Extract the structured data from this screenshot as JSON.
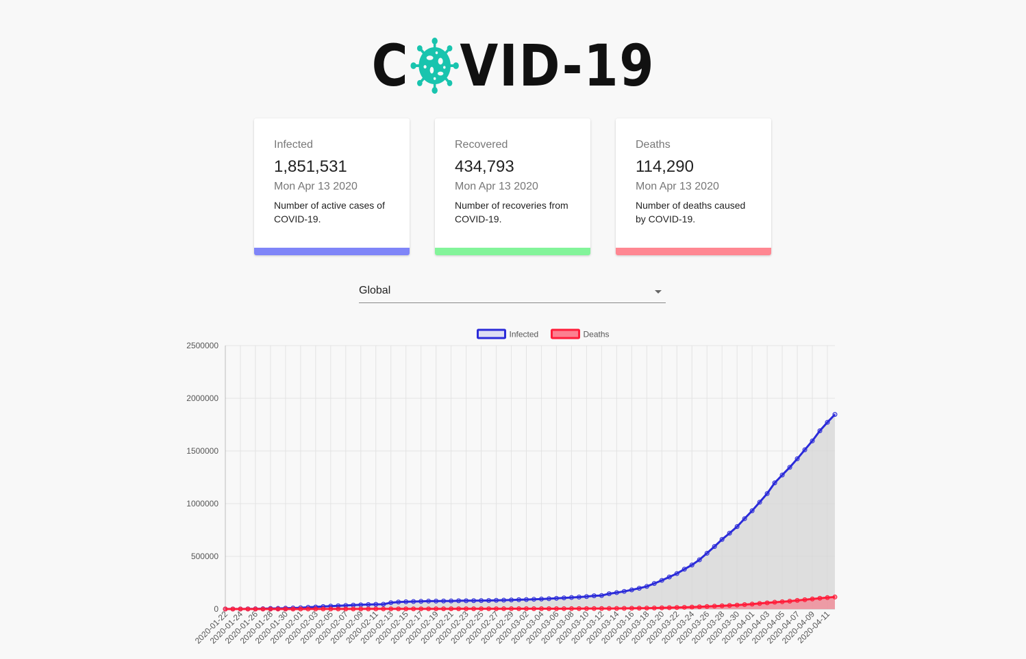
{
  "header": {
    "title_left": "C",
    "title_right": "VID-19",
    "logo_icon": "virus-icon"
  },
  "cards": [
    {
      "title": "Infected",
      "value": "1,851,531",
      "date": "Mon Apr 13 2020",
      "description": "Number of active cases of COVID-19.",
      "color": "#7f85f8"
    },
    {
      "title": "Recovered",
      "value": "434,793",
      "date": "Mon Apr 13 2020",
      "description": "Number of recoveries from COVID-19.",
      "color": "#83f49a"
    },
    {
      "title": "Deaths",
      "value": "114,290",
      "date": "Mon Apr 13 2020",
      "description": "Number of deaths caused by COVID-19.",
      "color": "#ff8792"
    }
  ],
  "country_select": {
    "value": "Global"
  },
  "chart_data": {
    "type": "line",
    "x": [
      "2020-01-22",
      "2020-01-23",
      "2020-01-24",
      "2020-01-25",
      "2020-01-26",
      "2020-01-27",
      "2020-01-28",
      "2020-01-29",
      "2020-01-30",
      "2020-01-31",
      "2020-02-01",
      "2020-02-02",
      "2020-02-03",
      "2020-02-04",
      "2020-02-05",
      "2020-02-06",
      "2020-02-07",
      "2020-02-08",
      "2020-02-09",
      "2020-02-10",
      "2020-02-11",
      "2020-02-12",
      "2020-02-13",
      "2020-02-14",
      "2020-02-15",
      "2020-02-16",
      "2020-02-17",
      "2020-02-18",
      "2020-02-19",
      "2020-02-20",
      "2020-02-21",
      "2020-02-22",
      "2020-02-23",
      "2020-02-24",
      "2020-02-25",
      "2020-02-26",
      "2020-02-27",
      "2020-02-28",
      "2020-02-29",
      "2020-03-01",
      "2020-03-02",
      "2020-03-03",
      "2020-03-04",
      "2020-03-05",
      "2020-03-06",
      "2020-03-07",
      "2020-03-08",
      "2020-03-09",
      "2020-03-10",
      "2020-03-11",
      "2020-03-12",
      "2020-03-13",
      "2020-03-14",
      "2020-03-15",
      "2020-03-16",
      "2020-03-17",
      "2020-03-18",
      "2020-03-19",
      "2020-03-20",
      "2020-03-21",
      "2020-03-22",
      "2020-03-23",
      "2020-03-24",
      "2020-03-25",
      "2020-03-26",
      "2020-03-27",
      "2020-03-28",
      "2020-03-29",
      "2020-03-30",
      "2020-03-31",
      "2020-04-01",
      "2020-04-02",
      "2020-04-03",
      "2020-04-04",
      "2020-04-05",
      "2020-04-06",
      "2020-04-07",
      "2020-04-08",
      "2020-04-09",
      "2020-04-10",
      "2020-04-11",
      "2020-04-12"
    ],
    "x_tick_labels": [
      "2020-01-22",
      "2020-01-24",
      "2020-01-26",
      "2020-01-28",
      "2020-01-30",
      "2020-02-01",
      "2020-02-03",
      "2020-02-05",
      "2020-02-07",
      "2020-02-09",
      "2020-02-11",
      "2020-02-13",
      "2020-02-15",
      "2020-02-17",
      "2020-02-19",
      "2020-02-21",
      "2020-02-23",
      "2020-02-25",
      "2020-02-27",
      "2020-02-29",
      "2020-03-02",
      "2020-03-04",
      "2020-03-06",
      "2020-03-08",
      "2020-03-10",
      "2020-03-12",
      "2020-03-14",
      "2020-03-16",
      "2020-03-18",
      "2020-03-20",
      "2020-03-22",
      "2020-03-24",
      "2020-03-26",
      "2020-03-28",
      "2020-03-30",
      "2020-04-01",
      "2020-04-03",
      "2020-04-05",
      "2020-04-07",
      "2020-04-09",
      "2020-04-11"
    ],
    "series": [
      {
        "name": "Infected",
        "color": "#2b2bd9",
        "fill": "#d6d6d6",
        "values": [
          555,
          654,
          941,
          1434,
          2118,
          2927,
          5578,
          6166,
          8234,
          9927,
          12038,
          16787,
          19881,
          23892,
          27635,
          30794,
          34391,
          37120,
          40150,
          42762,
          44802,
          45221,
          60368,
          66885,
          69030,
          71224,
          73258,
          75136,
          75639,
          76197,
          76819,
          78572,
          78958,
          79561,
          80406,
          81388,
          82746,
          84112,
          86011,
          88369,
          90306,
          92840,
          95120,
          97886,
          101801,
          105847,
          109821,
          113590,
          118620,
          125875,
          128352,
          145205,
          156101,
          167454,
          181574,
          197102,
          214821,
          242570,
          272208,
          304507,
          336953,
          378235,
          418045,
          467653,
          529591,
          593291,
          660706,
          720117,
          782365,
          857487,
          932605,
          1013466,
          1095917,
          1197405,
          1272115,
          1345101,
          1426096,
          1511104,
          1595350,
          1691719,
          1771514,
          1846680
        ]
      },
      {
        "name": "Deaths",
        "color": "#ff1d3a",
        "fill": "#f08a96",
        "values": [
          17,
          18,
          26,
          42,
          56,
          82,
          131,
          133,
          171,
          213,
          259,
          362,
          426,
          492,
          564,
          634,
          719,
          806,
          906,
          1013,
          1113,
          1118,
          1371,
          1523,
          1666,
          1770,
          1868,
          2007,
          2122,
          2247,
          2251,
          2458,
          2469,
          2629,
          2708,
          2770,
          2814,
          2872,
          2941,
          2996,
          3085,
          3160,
          3254,
          3348,
          3460,
          3558,
          3802,
          3988,
          4262,
          4615,
          4720,
          5404,
          5819,
          6440,
          7126,
          7905,
          8733,
          9867,
          11299,
          12973,
          14623,
          16497,
          18615,
          21181,
          23970,
          27198,
          30652,
          33925,
          37582,
          42107,
          46809,
          52983,
          58787,
          64606,
          69374,
          74565,
          81865,
          88338,
          95455,
          102525,
          108503,
          114090
        ]
      }
    ],
    "ylim": [
      0,
      2500000
    ],
    "y_ticks": [
      "0",
      "500000",
      "1000000",
      "1500000",
      "2000000",
      "2500000"
    ],
    "legend_position": "top",
    "grid": true
  }
}
